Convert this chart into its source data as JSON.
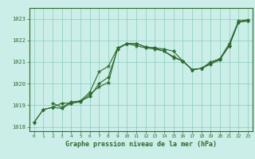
{
  "xlabel": "Graphe pression niveau de la mer (hPa)",
  "xlim": [
    -0.5,
    23.5
  ],
  "ylim": [
    1017.8,
    1023.5
  ],
  "yticks": [
    1018,
    1019,
    1020,
    1021,
    1022,
    1023
  ],
  "xticks": [
    0,
    1,
    2,
    3,
    4,
    5,
    6,
    7,
    8,
    9,
    10,
    11,
    12,
    13,
    14,
    15,
    16,
    17,
    18,
    19,
    20,
    21,
    22,
    23
  ],
  "background_color": "#cceee8",
  "grid_color": "#88ccbb",
  "line_color": "#2d6b2d",
  "line1_x": [
    0,
    1,
    2,
    3,
    4,
    5,
    6,
    7,
    8,
    9,
    10,
    11,
    12,
    13,
    14,
    15,
    16,
    17,
    18,
    19,
    20,
    21,
    22,
    23
  ],
  "line1_y": [
    1018.2,
    1018.8,
    1018.9,
    1018.85,
    1019.1,
    1019.15,
    1019.5,
    1019.85,
    1020.05,
    1021.65,
    1021.85,
    1021.85,
    1021.7,
    1021.65,
    1021.5,
    1021.25,
    1021.05,
    1020.65,
    1020.7,
    1021.0,
    1021.15,
    1021.75,
    1022.85,
    1022.9
  ],
  "line2_x": [
    0,
    1,
    2,
    3,
    4,
    5,
    6,
    7,
    8,
    9,
    10,
    11,
    12,
    13,
    14,
    15,
    16,
    17,
    18,
    19,
    20,
    21,
    22,
    23
  ],
  "line2_y": [
    1018.2,
    1018.8,
    1018.9,
    1019.1,
    1019.1,
    1019.2,
    1019.4,
    1020.0,
    1020.3,
    1021.6,
    1021.85,
    1021.85,
    1021.7,
    1021.65,
    1021.6,
    1021.5,
    1021.05,
    1020.65,
    1020.7,
    1020.9,
    1021.1,
    1021.75,
    1022.85,
    1022.9
  ],
  "line3_x": [
    2,
    3,
    4,
    5,
    6,
    7,
    8,
    9,
    10,
    11,
    12,
    13,
    14,
    15,
    16,
    17,
    18,
    19,
    20,
    21,
    22,
    23
  ],
  "line3_y": [
    1019.1,
    1018.9,
    1019.15,
    1019.2,
    1019.6,
    1020.55,
    1020.8,
    1021.65,
    1021.85,
    1021.75,
    1021.65,
    1021.6,
    1021.5,
    1021.2,
    1021.05,
    1020.65,
    1020.7,
    1020.95,
    1021.15,
    1021.85,
    1022.9,
    1022.95
  ]
}
